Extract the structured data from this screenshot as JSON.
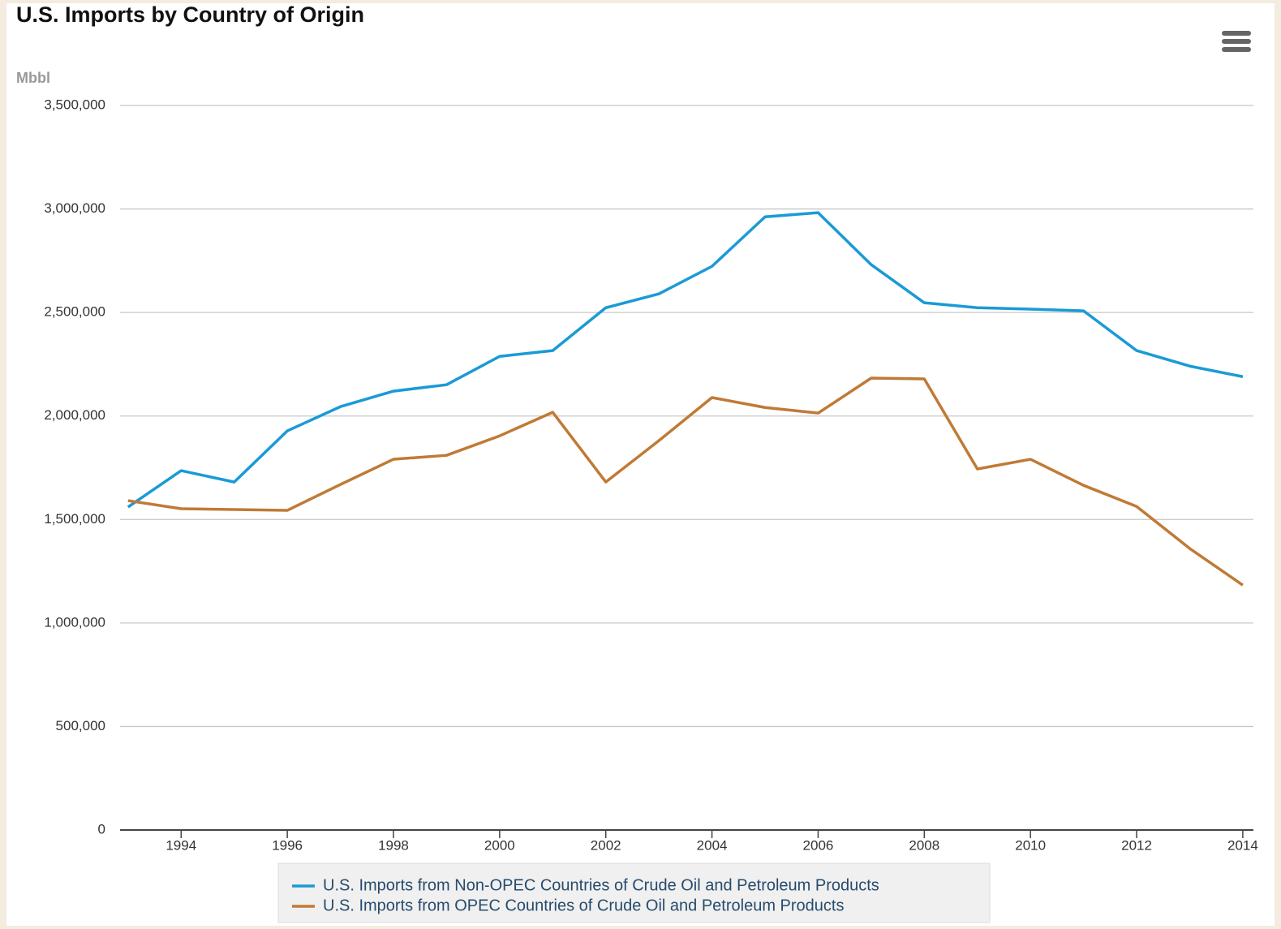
{
  "chart_data": {
    "type": "line",
    "title": "U.S. Imports by Country of Origin",
    "y_label": "Mbbl",
    "x": [
      1993,
      1994,
      1995,
      1996,
      1997,
      1998,
      1999,
      2000,
      2001,
      2002,
      2003,
      2004,
      2005,
      2006,
      2007,
      2008,
      2009,
      2010,
      2011,
      2012,
      2013,
      2014
    ],
    "series": [
      {
        "name": "U.S. Imports from Non-OPEC Countries of Crude Oil and Petroleum Products",
        "color": "#1a9ad6",
        "values": [
          1560000,
          1736000,
          1681000,
          1928000,
          2045000,
          2120000,
          2151000,
          2288000,
          2316000,
          2523000,
          2590000,
          2723000,
          2962000,
          2982000,
          2731000,
          2547000,
          2523000,
          2516000,
          2508000,
          2316000,
          2241000,
          2190000
        ]
      },
      {
        "name": "U.S. Imports from OPEC Countries of Crude Oil and Petroleum Products",
        "color": "#c07a35",
        "values": [
          1591000,
          1552000,
          1548000,
          1544000,
          1669000,
          1791000,
          1810000,
          1904000,
          2018000,
          1681000,
          1881000,
          2089000,
          2041000,
          2014000,
          2183000,
          2179000,
          1744000,
          1791000,
          1665000,
          1563000,
          1360000,
          1183000
        ]
      }
    ],
    "xlim": [
      1992.85,
      2014.2
    ],
    "xticks": [
      1994,
      1996,
      1998,
      2000,
      2002,
      2004,
      2006,
      2008,
      2010,
      2012,
      2014
    ],
    "ylim": [
      0,
      3500000
    ],
    "yticks": [
      0,
      {
        "value": 500000,
        "label": "500,000"
      },
      {
        "value": 1000000,
        "label": "1,000,000"
      },
      {
        "value": 1500000,
        "label": "1,500,000"
      },
      {
        "value": 2000000,
        "label": "2,000,000"
      },
      {
        "value": 2500000,
        "label": "2,500,000"
      },
      {
        "value": 3000000,
        "label": "3,000,000"
      },
      {
        "value": 3500000,
        "label": "3,500,000"
      }
    ],
    "grid": true,
    "legend": "bottom"
  }
}
